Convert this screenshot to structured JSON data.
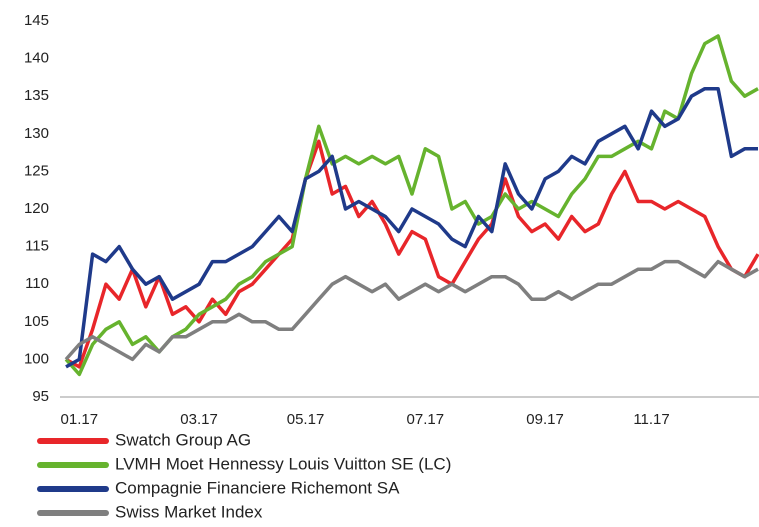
{
  "chart_data": {
    "type": "line",
    "categories": [
      null,
      "01.17",
      null,
      null,
      null,
      null,
      null,
      null,
      null,
      null,
      "03.17",
      null,
      null,
      null,
      null,
      null,
      null,
      null,
      "05.17",
      null,
      null,
      null,
      null,
      null,
      null,
      null,
      null,
      "07.17",
      null,
      null,
      null,
      null,
      null,
      null,
      null,
      null,
      "09.17",
      null,
      null,
      null,
      null,
      null,
      null,
      null,
      "11.17",
      null,
      null,
      null,
      null,
      null,
      null,
      null,
      null
    ],
    "series": [
      {
        "name": "Swatch Group AG",
        "color": "#e8262a",
        "values": [
          100,
          99,
          104,
          110,
          108,
          112,
          107,
          111,
          106,
          107,
          105,
          108,
          106,
          109,
          110,
          112,
          114,
          116,
          124,
          129,
          122,
          123,
          119,
          121,
          118,
          114,
          117,
          116,
          111,
          110,
          113,
          116,
          118,
          124,
          119,
          117,
          118,
          116,
          119,
          117,
          118,
          122,
          125,
          121,
          121,
          120,
          121,
          120,
          119,
          115,
          112,
          111,
          114
        ]
      },
      {
        "name": "LVMH Moet Hennessy Louis Vuitton SE (LC)",
        "color": "#66b32e",
        "values": [
          100,
          98,
          102,
          104,
          105,
          102,
          103,
          101,
          103,
          104,
          106,
          107,
          108,
          110,
          111,
          113,
          114,
          115,
          124,
          131,
          126,
          127,
          126,
          127,
          126,
          127,
          122,
          128,
          127,
          120,
          121,
          118,
          119,
          122,
          120,
          121,
          120,
          119,
          122,
          124,
          127,
          127,
          128,
          129,
          128,
          133,
          132,
          138,
          142,
          143,
          137,
          135,
          136
        ]
      },
      {
        "name": "Compagnie Financiere Richemont SA",
        "color": "#1f3a8a",
        "values": [
          99,
          100,
          114,
          113,
          115,
          112,
          110,
          111,
          108,
          109,
          110,
          113,
          113,
          114,
          115,
          117,
          119,
          117,
          124,
          125,
          127,
          120,
          121,
          120,
          119,
          117,
          120,
          119,
          118,
          116,
          115,
          119,
          117,
          126,
          122,
          120,
          124,
          125,
          127,
          126,
          129,
          130,
          131,
          128,
          133,
          131,
          132,
          135,
          136,
          136,
          127,
          128,
          128
        ]
      },
      {
        "name": "Swiss Market Index",
        "color": "#7f7f7f",
        "values": [
          100,
          102,
          103,
          102,
          101,
          100,
          102,
          101,
          103,
          103,
          104,
          105,
          105,
          106,
          105,
          105,
          104,
          104,
          106,
          108,
          110,
          111,
          110,
          109,
          110,
          108,
          109,
          110,
          109,
          110,
          109,
          110,
          111,
          111,
          110,
          108,
          108,
          109,
          108,
          109,
          110,
          110,
          111,
          112,
          112,
          113,
          113,
          112,
          111,
          113,
          112,
          111,
          112
        ]
      }
    ],
    "ylim": [
      95,
      145
    ],
    "yticks": [
      95,
      100,
      105,
      110,
      115,
      120,
      125,
      130,
      135,
      140,
      145
    ],
    "grid": false
  }
}
